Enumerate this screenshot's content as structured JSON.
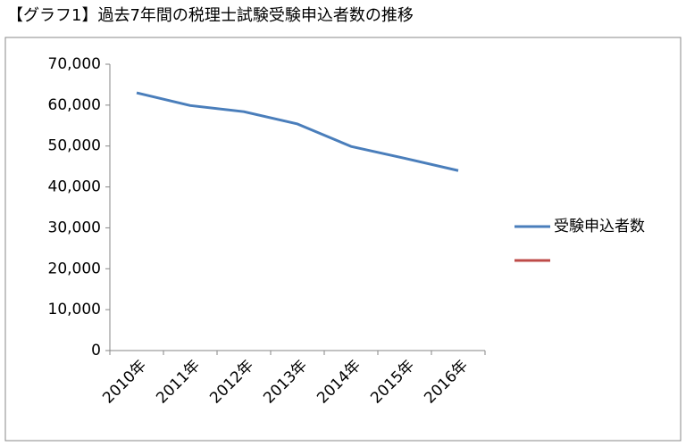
{
  "chart_data": {
    "type": "line",
    "title": "【グラフ1】過去7年間の税理士試験受験申込者数の推移",
    "categories": [
      "2010年",
      "2011年",
      "2012年",
      "2013年",
      "2014年",
      "2015年",
      "2016年"
    ],
    "series": [
      {
        "name": "受験申込者数",
        "color": "#4a7ebb",
        "values": [
          63000,
          59900,
          58400,
          55400,
          49900,
          47000,
          44000
        ]
      },
      {
        "color": "#be4b48",
        "values": [
          null,
          null,
          null,
          null,
          null,
          null,
          null
        ]
      }
    ],
    "ylim": [
      0,
      70000
    ],
    "yticks": [
      0,
      {
        "value": 10000,
        "label": "10,000"
      },
      {
        "value": 20000,
        "label": "20,000"
      },
      {
        "value": 30000,
        "label": "30,000"
      },
      {
        "value": 40000,
        "label": "40,000"
      },
      {
        "value": 50000,
        "label": "50,000"
      },
      {
        "value": 60000,
        "label": "60,000"
      },
      {
        "value": 70000,
        "label": "70,000"
      }
    ],
    "grid": false,
    "legend": "right"
  }
}
